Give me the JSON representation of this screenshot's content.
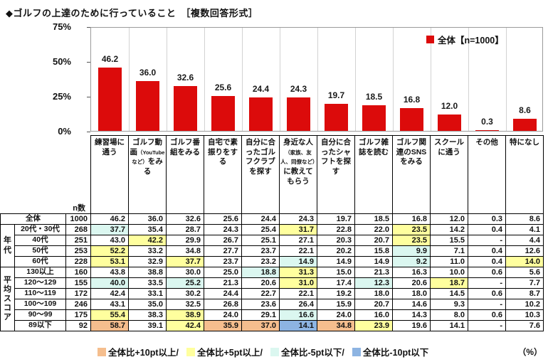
{
  "title": "◆ゴルフの上達のために行っていること　［複数回答形式］",
  "percent_note": "（%）",
  "colors": {
    "bar": "#dc0b0b",
    "p10": "#f5be8e",
    "p5": "#ffff9e",
    "m5": "#dbf7f0",
    "m10": "#8db4e2"
  },
  "chart_data": {
    "type": "bar",
    "title": "ゴルフの上達のために行っていること（複数回答形式）",
    "legend": "全体【n=1000】",
    "legend_position": "top-right",
    "xlabel": "",
    "ylabel": "%",
    "ylim": [
      0,
      75
    ],
    "yticks": [
      75,
      50,
      25,
      0
    ],
    "grid": "vertical-category-separators",
    "bar_color": "#dc0b0b",
    "categories": [
      "練習場に通う",
      "ゴルフ動画（YouTubeなど）をみる",
      "ゴルフ番組をみる",
      "自宅で素振りをする",
      "自分に合ったゴルフクラブを探す",
      "身近な人（家族、友人、同僚など）に教えてもらう",
      "自分に合ったシャフトを探す",
      "ゴルフ雑誌を読む",
      "ゴルフ関連のSNSをみる",
      "スクールに通う",
      "その他",
      "特になし"
    ],
    "values": [
      46.2,
      36.0,
      32.6,
      25.6,
      24.4,
      24.3,
      19.7,
      18.5,
      16.8,
      12.0,
      0.3,
      8.6
    ],
    "value_labels": [
      "46.2",
      "36.0",
      "32.6",
      "25.6",
      "24.4",
      "24.3",
      "19.7",
      "18.5",
      "16.8",
      "12.0",
      "0.3",
      "8.6"
    ]
  },
  "table": {
    "n_header": "n数",
    "columns": [
      [
        {
          "t": "練習場に通う"
        }
      ],
      [
        {
          "t": "ゴルフ動画"
        },
        {
          "t": "（YouTubeなど）",
          "small": true
        },
        {
          "t": "をみる"
        }
      ],
      [
        {
          "t": "ゴルフ番組をみる"
        }
      ],
      [
        {
          "t": "自宅で素振りをする"
        }
      ],
      [
        {
          "t": "自分に合ったゴルフクラブを探す"
        }
      ],
      [
        {
          "t": "身近な人"
        },
        {
          "t": "（家族、友人、同僚など）",
          "small": true
        },
        {
          "t": "に教えてもらう"
        }
      ],
      [
        {
          "t": "自分に合ったシャフトを探す"
        }
      ],
      [
        {
          "t": "ゴルフ雑誌を読む"
        }
      ],
      [
        {
          "t": "ゴルフ関連のSNSをみる"
        }
      ],
      [
        {
          "t": "スクールに通う"
        }
      ],
      [
        {
          "t": "その他"
        }
      ],
      [
        {
          "t": "特になし"
        }
      ]
    ],
    "groups": [
      {
        "label": "",
        "start": 0,
        "count": 1
      },
      {
        "label": "年代",
        "start": 1,
        "count": 4
      },
      {
        "label": "平均スコア",
        "start": 5,
        "count": 6
      }
    ],
    "rows": [
      {
        "label": "全体",
        "n": "1000",
        "values": [
          "46.2",
          "36.0",
          "32.6",
          "25.6",
          "24.4",
          "24.3",
          "19.7",
          "18.5",
          "16.8",
          "12.0",
          "0.3",
          "8.6"
        ],
        "hl": [
          "",
          "",
          "",
          "",
          "",
          "",
          "",
          "",
          "",
          "",
          "",
          ""
        ]
      },
      {
        "label": "20代・30代",
        "n": "268",
        "values": [
          "37.7",
          "35.4",
          "28.7",
          "24.3",
          "25.4",
          "31.7",
          "22.8",
          "22.0",
          "23.5",
          "14.2",
          "0.4",
          "4.1"
        ],
        "hl": [
          "m5",
          "",
          "",
          "",
          "",
          "p5",
          "",
          "",
          "p5",
          "",
          "",
          ""
        ]
      },
      {
        "label": "40代",
        "n": "251",
        "values": [
          "43.0",
          "42.2",
          "29.9",
          "26.7",
          "25.1",
          "27.1",
          "20.3",
          "20.7",
          "23.5",
          "15.5",
          "-",
          "4.4"
        ],
        "hl": [
          "",
          "p5",
          "",
          "",
          "",
          "",
          "",
          "",
          "p5",
          "",
          "",
          ""
        ]
      },
      {
        "label": "50代",
        "n": "253",
        "values": [
          "52.2",
          "33.2",
          "34.8",
          "27.7",
          "23.7",
          "22.1",
          "20.2",
          "15.8",
          "9.9",
          "7.1",
          "0.4",
          "12.6"
        ],
        "hl": [
          "p5",
          "",
          "",
          "",
          "",
          "",
          "",
          "",
          "m5",
          "",
          "",
          ""
        ]
      },
      {
        "label": "60代",
        "n": "228",
        "values": [
          "53.1",
          "32.9",
          "37.7",
          "23.7",
          "23.2",
          "14.9",
          "14.9",
          "14.9",
          "9.2",
          "11.0",
          "0.4",
          "14.0"
        ],
        "hl": [
          "p5",
          "",
          "p5",
          "",
          "",
          "m5",
          "",
          "",
          "m5",
          "",
          "",
          "p5"
        ]
      },
      {
        "label": "130以上",
        "n": "160",
        "values": [
          "43.8",
          "38.8",
          "30.0",
          "25.0",
          "18.8",
          "31.3",
          "15.0",
          "21.3",
          "16.3",
          "10.0",
          "0.6",
          "5.6"
        ],
        "hl": [
          "",
          "",
          "",
          "",
          "m5",
          "p5",
          "",
          "",
          "",
          "",
          "",
          ""
        ]
      },
      {
        "label": "120〜129",
        "n": "155",
        "values": [
          "40.0",
          "33.5",
          "25.2",
          "21.3",
          "20.6",
          "31.0",
          "17.4",
          "12.3",
          "20.6",
          "18.7",
          "-",
          "7.7"
        ],
        "hl": [
          "m5",
          "",
          "m5",
          "",
          "",
          "p5",
          "",
          "m5",
          "",
          "p5",
          "",
          ""
        ]
      },
      {
        "label": "110〜119",
        "n": "172",
        "values": [
          "42.4",
          "33.1",
          "30.2",
          "24.4",
          "22.7",
          "22.1",
          "19.2",
          "18.0",
          "18.0",
          "14.5",
          "0.6",
          "8.7"
        ],
        "hl": [
          "",
          "",
          "",
          "",
          "",
          "",
          "",
          "",
          "",
          "",
          "",
          ""
        ]
      },
      {
        "label": "100〜109",
        "n": "246",
        "values": [
          "43.1",
          "35.0",
          "32.5",
          "26.8",
          "23.6",
          "26.4",
          "15.9",
          "20.7",
          "14.6",
          "9.3",
          "-",
          "10.2"
        ],
        "hl": [
          "",
          "",
          "",
          "",
          "",
          "",
          "",
          "",
          "",
          "",
          "",
          ""
        ]
      },
      {
        "label": "90〜99",
        "n": "175",
        "values": [
          "55.4",
          "38.3",
          "38.9",
          "24.0",
          "29.1",
          "16.6",
          "24.0",
          "16.0",
          "14.3",
          "8.0",
          "0.6",
          "10.3"
        ],
        "hl": [
          "p5",
          "",
          "p5",
          "",
          "",
          "m5",
          "",
          "",
          "",
          "",
          "",
          ""
        ]
      },
      {
        "label": "89以下",
        "n": "92",
        "values": [
          "58.7",
          "39.1",
          "42.4",
          "35.9",
          "37.0",
          "14.1",
          "34.8",
          "23.9",
          "19.6",
          "14.1",
          "-",
          "7.6"
        ],
        "hl": [
          "p10",
          "",
          "p5",
          "p10",
          "p10",
          "m10",
          "p10",
          "p5",
          "",
          "",
          "",
          ""
        ]
      }
    ]
  },
  "footer_legend": [
    {
      "key": "p10",
      "label": "全体比+10pt以上/"
    },
    {
      "key": "p5",
      "label": "全体比+5pt以上/"
    },
    {
      "key": "m5",
      "label": "全体比-5pt以下/"
    },
    {
      "key": "m10",
      "label": "全体比-10pt以下"
    }
  ]
}
